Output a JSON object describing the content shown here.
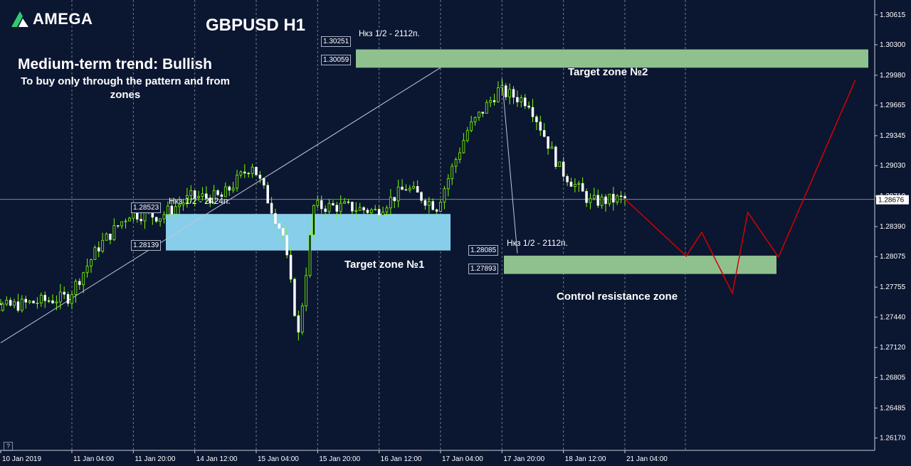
{
  "brand": {
    "name": "AMEGA",
    "accent": "#2ecc71"
  },
  "header": {
    "title": "GBPUSD H1",
    "trend_title": "Medium-term trend: Bullish",
    "trend_note": "To buy only through the pattern  and from zones"
  },
  "colors": {
    "background": "#0b1631",
    "candle": "#7cfc00",
    "grid": "#c8d0dc",
    "green_zone": "#8fc18f",
    "blue_zone": "#87ceeb",
    "projection": "#d40000",
    "trendline": "#c0c8d4"
  },
  "zones": {
    "target1": {
      "label": "Target zone №1",
      "note": "Нкз 1/2 - 2424п.",
      "upper_text": "1.28523",
      "lower_text": "1.28139",
      "upper": 1.28523,
      "lower": 1.28139
    },
    "target2": {
      "label": "Target zone №2",
      "note": "Нкз 1/2 - 2112п.",
      "upper_text": "1.30251",
      "lower_text": "1.30059",
      "upper": 1.30251,
      "lower": 1.30059
    },
    "control": {
      "label": "Control resistance zone",
      "note": "Нкз 1/2 - 2112п.",
      "upper_text": "1.28085",
      "lower_text": "1.27893",
      "upper": 1.28085,
      "lower": 1.27893
    }
  },
  "chart_data": {
    "type": "candlestick",
    "symbol": "GBPUSD",
    "timeframe": "H1",
    "ylim": [
      1.2604,
      1.3077
    ],
    "current_price": 1.28676,
    "y_ticks": [
      "1.30615",
      "1.30300",
      "1.29980",
      "1.29665",
      "1.29345",
      "1.29030",
      "1.28710",
      "1.28390",
      "1.28075",
      "1.27755",
      "1.27440",
      "1.27120",
      "1.26805",
      "1.26485",
      "1.26170"
    ],
    "x_ticks": [
      "10 Jan 2019",
      "11 Jan 04:00",
      "11 Jan 20:00",
      "14 Jan 12:00",
      "15 Jan 04:00",
      "15 Jan 20:00",
      "16 Jan 12:00",
      "17 Jan 04:00",
      "17 Jan 20:00",
      "18 Jan 12:00",
      "21 Jan 04:00"
    ],
    "grid": "vertical dashed",
    "price_path": [
      [
        "10 Jan 2019",
        1.2758
      ],
      [
        "10 Jan 12:00",
        1.2755
      ],
      [
        "11 Jan 04:00",
        1.2765
      ],
      [
        "11 Jan 12:00",
        1.2818
      ],
      [
        "11 Jan 20:00",
        1.2853
      ],
      [
        "14 Jan 04:00",
        1.285
      ],
      [
        "14 Jan 12:00",
        1.287
      ],
      [
        "14 Jan 20:00",
        1.287
      ],
      [
        "15 Jan 04:00",
        1.2905
      ],
      [
        "15 Jan 12:00",
        1.283
      ],
      [
        "15 Jan 16:00",
        1.2725
      ],
      [
        "15 Jan 20:00",
        1.286
      ],
      [
        "16 Jan 04:00",
        1.286
      ],
      [
        "16 Jan 12:00",
        1.2855
      ],
      [
        "16 Jan 20:00",
        1.288
      ],
      [
        "17 Jan 04:00",
        1.286
      ],
      [
        "17 Jan 12:00",
        1.294
      ],
      [
        "17 Jan 20:00",
        1.2982
      ],
      [
        "18 Jan 04:00",
        1.297
      ],
      [
        "18 Jan 12:00",
        1.29
      ],
      [
        "18 Jan 20:00",
        1.2865
      ],
      [
        "21 Jan 04:00",
        1.2868
      ]
    ],
    "projection": [
      [
        "21 Jan 04:00",
        1.2868
      ],
      [
        "21 Jan 20:00",
        1.2808
      ],
      [
        "22 Jan 00:00",
        1.2833
      ],
      [
        "22 Jan 08:00",
        1.2769
      ],
      [
        "22 Jan 12:00",
        1.2854
      ],
      [
        "22 Jan 20:00",
        1.2807
      ],
      [
        "23 Jan 16:00",
        1.2993
      ]
    ],
    "trendlines": [
      [
        [
          "10 Jan 2019",
          1.2717
        ],
        [
          "17 Jan 04:00",
          1.3006
        ]
      ],
      [
        [
          "17 Jan 20:00",
          1.2994
        ],
        [
          "18 Jan 00:00",
          1.2811
        ]
      ]
    ]
  }
}
